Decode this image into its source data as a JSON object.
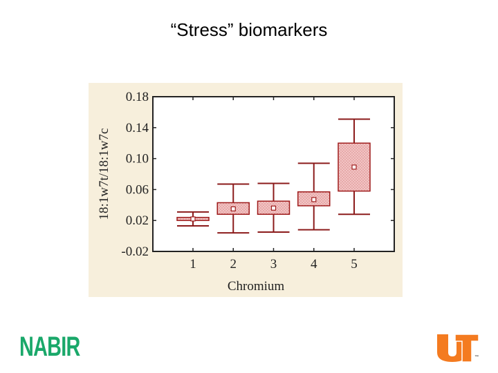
{
  "slide": {
    "title": "“Stress” biomarkers"
  },
  "logos": {
    "left_text": "NABIR",
    "right_text": "UT",
    "right_tm": "™",
    "left_color": "#1aa86a",
    "right_color": "#f47b20"
  },
  "chart_data": {
    "type": "box",
    "title": "",
    "xlabel": "Chromium",
    "ylabel": "18:1w7t/18:1w7c",
    "categories": [
      "1",
      "2",
      "3",
      "4",
      "5"
    ],
    "ylim": [
      -0.02,
      0.18
    ],
    "yticks": [
      "-0.02",
      "0.02",
      "0.06",
      "0.10",
      "0.14",
      "0.18"
    ],
    "boxes": [
      {
        "category": "1",
        "whisker_low": 0.013,
        "q1": 0.02,
        "median": 0.022,
        "q3": 0.024,
        "whisker_high": 0.031
      },
      {
        "category": "2",
        "whisker_low": 0.004,
        "q1": 0.028,
        "median": 0.035,
        "q3": 0.043,
        "whisker_high": 0.067
      },
      {
        "category": "3",
        "whisker_low": 0.005,
        "q1": 0.028,
        "median": 0.036,
        "q3": 0.045,
        "whisker_high": 0.068
      },
      {
        "category": "4",
        "whisker_low": 0.008,
        "q1": 0.039,
        "median": 0.047,
        "q3": 0.057,
        "whisker_high": 0.094
      },
      {
        "category": "5",
        "whisker_low": 0.028,
        "q1": 0.058,
        "median": 0.089,
        "q3": 0.12,
        "whisker_high": 0.151
      }
    ],
    "grid": false,
    "colors": {
      "box_fill": "#f2c4c4",
      "box_stroke": "#9e1b1b",
      "whisker": "#8b1a1a",
      "background": "#f7efdc",
      "plot_area": "#ffffff"
    }
  }
}
